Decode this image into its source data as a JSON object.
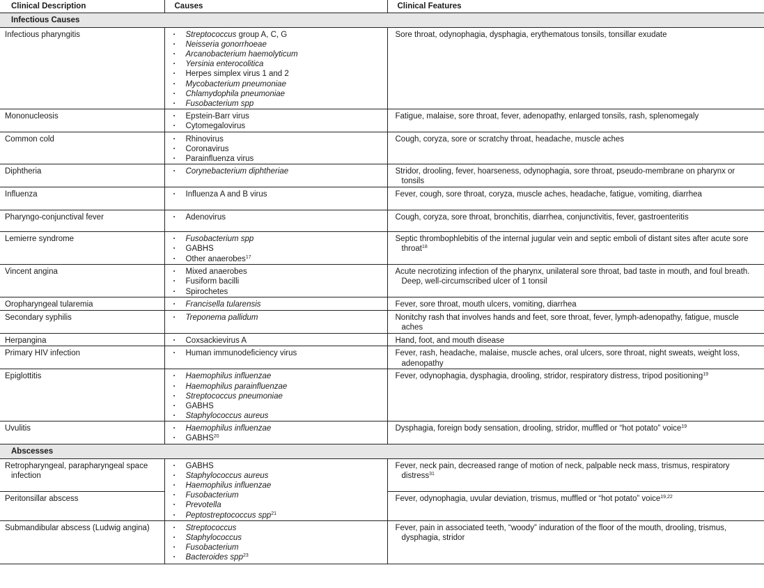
{
  "headers": [
    "Clinical Description",
    "Causes",
    "Clinical Features"
  ],
  "sections": [
    {
      "title": "Infectious Causes",
      "rows": [
        {
          "desc": "Infectious pharyngitis",
          "causes": [
            [
              {
                "t": "Streptococcus",
                "i": true
              },
              {
                "t": " group A, C, G"
              }
            ],
            [
              {
                "t": "Neisseria gonorrhoeae",
                "i": true
              }
            ],
            [
              {
                "t": "Arcanobacterium haemolyticum",
                "i": true
              }
            ],
            [
              {
                "t": "Yersinia enterocolitica",
                "i": true
              }
            ],
            [
              {
                "t": "Herpes simplex virus 1 and 2"
              }
            ],
            [
              {
                "t": "Mycobacterium pneumoniae",
                "i": true
              }
            ],
            [
              {
                "t": "Chlamydophila pneumoniae",
                "i": true
              }
            ],
            [
              {
                "t": "Fusobacterium spp",
                "i": true
              }
            ]
          ],
          "features": [
            {
              "t": "Sore throat, odynophagia, dysphagia, erythematous tonsils, tonsillar exudate"
            }
          ]
        },
        {
          "desc": "Mononucleosis",
          "causes": [
            [
              {
                "t": "Epstein-Barr virus"
              }
            ],
            [
              {
                "t": "Cytomegalovirus"
              }
            ]
          ],
          "features": [
            {
              "t": "Fatigue, malaise, sore throat, fever, adenopathy, enlarged tonsils, rash, splenomegaly"
            }
          ]
        },
        {
          "desc": "Common cold",
          "causes": [
            [
              {
                "t": "Rhinovirus"
              }
            ],
            [
              {
                "t": "Coronavirus"
              }
            ],
            [
              {
                "t": "Parainfluenza virus"
              }
            ]
          ],
          "features": [
            {
              "t": "Cough, coryza, sore or scratchy throat, headache, muscle aches"
            }
          ]
        },
        {
          "desc": "Diphtheria",
          "causes": [
            [
              {
                "t": "Corynebacterium diphtheriae",
                "i": true
              }
            ]
          ],
          "features": [
            {
              "t": "Stridor, drooling, fever, hoarseness, odynophagia, sore throat, pseudo-membrane on pharynx or tonsils"
            }
          ]
        },
        {
          "desc": "Influenza",
          "causes": [
            [
              {
                "t": "Influenza A and B virus"
              }
            ]
          ],
          "features": [
            {
              "t": "Fever, cough, sore throat, coryza, muscle aches, headache, fatigue, vomiting, diarrhea"
            }
          ]
        },
        {
          "desc": "Pharyngo-conjunctival fever",
          "causes": [
            [
              {
                "t": "Adenovirus"
              }
            ]
          ],
          "features": [
            {
              "t": "Cough, coryza, sore throat, bronchitis, diarrhea, conjunctivitis, fever, gastroenteritis"
            }
          ]
        },
        {
          "desc": "Lemierre syndrome",
          "causes": [
            [
              {
                "t": "Fusobacterium spp",
                "i": true
              }
            ],
            [
              {
                "t": "GABHS"
              }
            ],
            [
              {
                "t": "Other anaerobes"
              },
              {
                "t": "17",
                "sup": true
              }
            ]
          ],
          "features": [
            {
              "t": "Septic thrombophlebitis of the internal jugular vein and septic emboli of distant sites after acute sore throat"
            },
            {
              "t": "18",
              "sup": true
            }
          ]
        },
        {
          "desc": "Vincent angina",
          "causes": [
            [
              {
                "t": "Mixed anaerobes"
              }
            ],
            [
              {
                "t": "Fusiform bacilli"
              }
            ],
            [
              {
                "t": "Spirochetes"
              }
            ]
          ],
          "features": [
            {
              "t": "Acute necrotizing infection of the pharynx, unilateral sore throat, bad taste in mouth, and foul breath. Deep, well-circumscribed ulcer of 1 tonsil"
            }
          ]
        },
        {
          "desc": "Oropharyngeal tularemia",
          "causes": [
            [
              {
                "t": "Francisella tularensis",
                "i": true
              }
            ]
          ],
          "features": [
            {
              "t": "Fever, sore throat, mouth ulcers, vomiting, diarrhea"
            }
          ]
        },
        {
          "desc": "Secondary syphilis",
          "causes": [
            [
              {
                "t": "Treponema pallidum",
                "i": true
              }
            ]
          ],
          "features": [
            {
              "t": "Nonitchy rash that involves hands and feet, sore throat, fever, lymph-adenopathy, fatigue, muscle aches"
            }
          ]
        },
        {
          "desc": "Herpangina",
          "causes": [
            [
              {
                "t": "Coxsackievirus A"
              }
            ]
          ],
          "features": [
            {
              "t": "Hand, foot, and mouth disease"
            }
          ]
        },
        {
          "desc": "Primary HIV infection",
          "causes": [
            [
              {
                "t": "Human immunodeficiency virus"
              }
            ]
          ],
          "features": [
            {
              "t": "Fever, rash, headache, malaise, muscle aches, oral ulcers, sore throat, night sweats, weight loss, adenopathy"
            }
          ]
        },
        {
          "desc": "Epiglottitis",
          "causes": [
            [
              {
                "t": "Haemophilus influenzae",
                "i": true
              }
            ],
            [
              {
                "t": "Haemophilus parainfluenzae",
                "i": true
              }
            ],
            [
              {
                "t": "Streptococcus pneumoniae",
                "i": true
              }
            ],
            [
              {
                "t": "GABHS"
              }
            ],
            [
              {
                "t": "Staphylococcus aureus",
                "i": true
              }
            ]
          ],
          "features": [
            {
              "t": "Fever, odynophagia, dysphagia, drooling, stridor, respiratory distress, tripod positioning"
            },
            {
              "t": "19",
              "sup": true
            }
          ]
        },
        {
          "desc": "Uvulitis",
          "causes": [
            [
              {
                "t": "Haemophilus influenzae",
                "i": true
              }
            ],
            [
              {
                "t": "GABHS"
              },
              {
                "t": "20",
                "sup": true
              }
            ]
          ],
          "features": [
            {
              "t": "Dysphagia, foreign body sensation, drooling, stridor, muffled or “hot potato” voice"
            },
            {
              "t": "19",
              "sup": true
            }
          ]
        }
      ]
    },
    {
      "title": "Abscesses",
      "rows": [
        {
          "desc": "Retropharyngeal, parapharyngeal space infection",
          "causes": [
            [
              {
                "t": "GABHS"
              }
            ],
            [
              {
                "t": "Staphylococcus aureus",
                "i": true
              }
            ],
            [
              {
                "t": "Haemophilus influenzae",
                "i": true
              }
            ],
            [
              {
                "t": "Fusobacterium",
                "i": true
              }
            ],
            [
              {
                "t": "Prevotella",
                "i": true
              }
            ],
            [
              {
                "t": "Peptostreptococcus spp",
                "i": true
              },
              {
                "t": "21",
                "sup": true
              }
            ]
          ],
          "causes_span": 2,
          "features": [
            {
              "t": "Fever, neck pain, decreased range of motion of neck, palpable neck mass, trismus, respiratory distress"
            },
            {
              "t": "31",
              "sup": true
            }
          ]
        },
        {
          "desc": "Peritonsillar abscess",
          "features": [
            {
              "t": "Fever, odynophagia, uvular deviation, trismus, muffled or “hot potato” voice"
            },
            {
              "t": "19,22",
              "sup": true
            }
          ]
        },
        {
          "desc": "Submandibular abscess (Ludwig angina)",
          "causes": [
            [
              {
                "t": "Streptococcus",
                "i": true
              }
            ],
            [
              {
                "t": "Staphylococcus",
                "i": true
              }
            ],
            [
              {
                "t": "Fusobacterium",
                "i": true
              }
            ],
            [
              {
                "t": "Bacteroides spp",
                "i": true
              },
              {
                "t": "23",
                "sup": true
              }
            ]
          ],
          "features": [
            {
              "t": "Fever, pain in associated teeth, “woody” induration of the floor of the mouth, drooling, trismus, dysphagia, stridor"
            }
          ]
        }
      ]
    }
  ]
}
